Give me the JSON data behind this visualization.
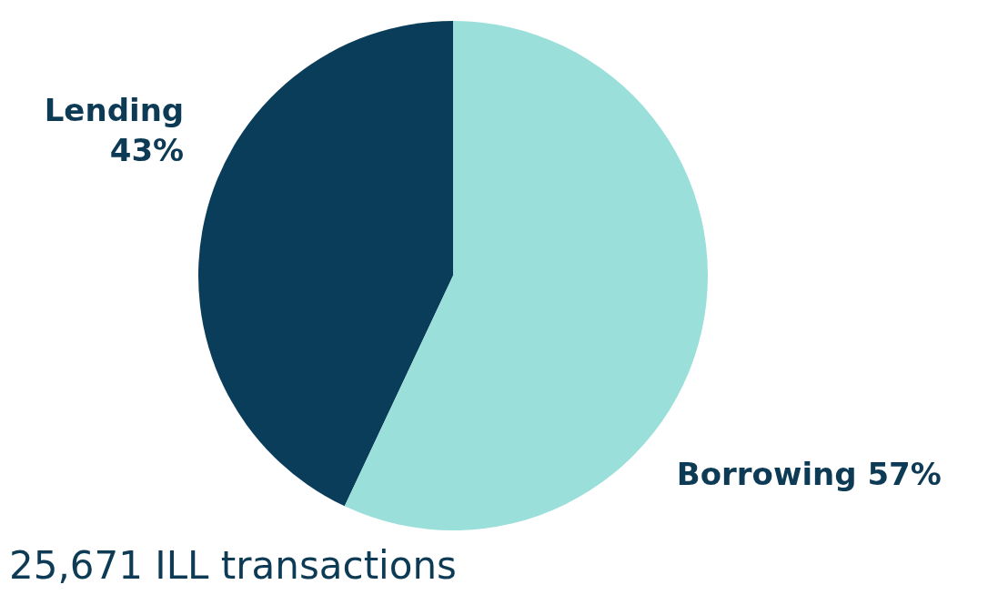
{
  "chart_data": {
    "type": "pie",
    "categories": [
      "Lending",
      "Borrowing"
    ],
    "values": [
      43,
      57
    ],
    "value_labels": [
      "43%",
      "57%"
    ],
    "colors": [
      "#0a3d5a",
      "#9adfda"
    ],
    "annotations": [
      "25,671 ILL transactions"
    ]
  }
}
